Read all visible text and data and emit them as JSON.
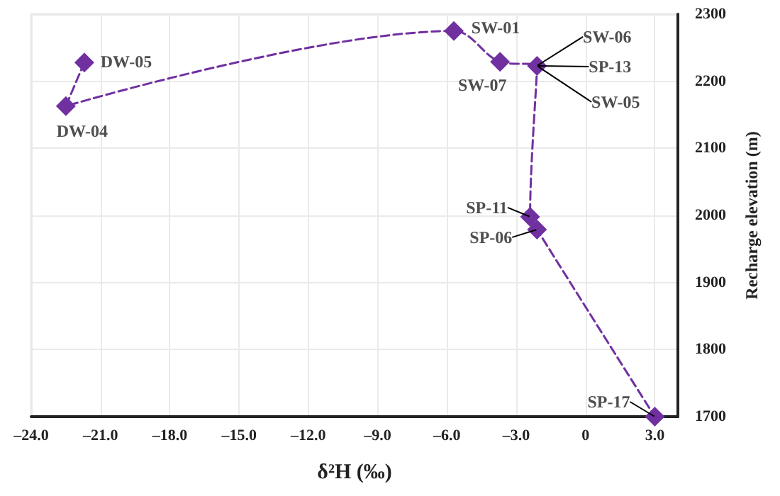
{
  "chart_data": {
    "type": "line",
    "xlabel": "δ²H (‰)",
    "ylabel": "Recharge elevation (m)",
    "x": [
      -21.7,
      -22.5,
      -5.7,
      -3.7,
      -2.1,
      -2.4,
      -2.1,
      3.0
    ],
    "series": [
      {
        "color": "#7030a0",
        "values": [
          2228,
          2163,
          2275,
          2229,
          2223,
          1998,
          1979,
          1700
        ]
      }
    ],
    "marker": "diamond",
    "line_style": "dashed",
    "grid": true,
    "xlim": [
      -24,
      4
    ],
    "ylim": [
      1700,
      2300
    ],
    "xticks": [
      {
        "value": -24,
        "label": "–24.0"
      },
      {
        "value": -21,
        "label": "–21.0"
      },
      {
        "value": -18,
        "label": "–18.0"
      },
      {
        "value": -15,
        "label": "–15.0"
      },
      {
        "value": -12,
        "label": "–12.0"
      },
      {
        "value": -9,
        "label": "–9.0"
      },
      {
        "value": -6,
        "label": "–6.0"
      },
      {
        "value": -3,
        "label": "–3.0"
      },
      0,
      {
        "value": 3,
        "label": "3.0"
      }
    ],
    "yticks": [
      1700,
      1800,
      1900,
      2000,
      2100,
      2200,
      2300
    ],
    "annotations": [
      {
        "text": "DW-05",
        "x": -21.7,
        "y": 2228
      },
      {
        "text": "DW-04",
        "x": -22.5,
        "y": 2163
      },
      {
        "text": "SW-01",
        "x": -5.7,
        "y": 2275
      },
      {
        "text": "SW-07",
        "x": -3.7,
        "y": 2229
      },
      {
        "text": "SW-06",
        "x": -2.1,
        "y": 2223
      },
      {
        "text": "SP-13",
        "x": -2.1,
        "y": 2223
      },
      {
        "text": "SW-05",
        "x": -2.1,
        "y": 2223
      },
      {
        "text": "SP-11",
        "x": -2.4,
        "y": 1998
      },
      {
        "text": "SP-06",
        "x": -2.1,
        "y": 1979
      },
      {
        "text": "SP-17",
        "x": 3.0,
        "y": 1700
      }
    ]
  }
}
